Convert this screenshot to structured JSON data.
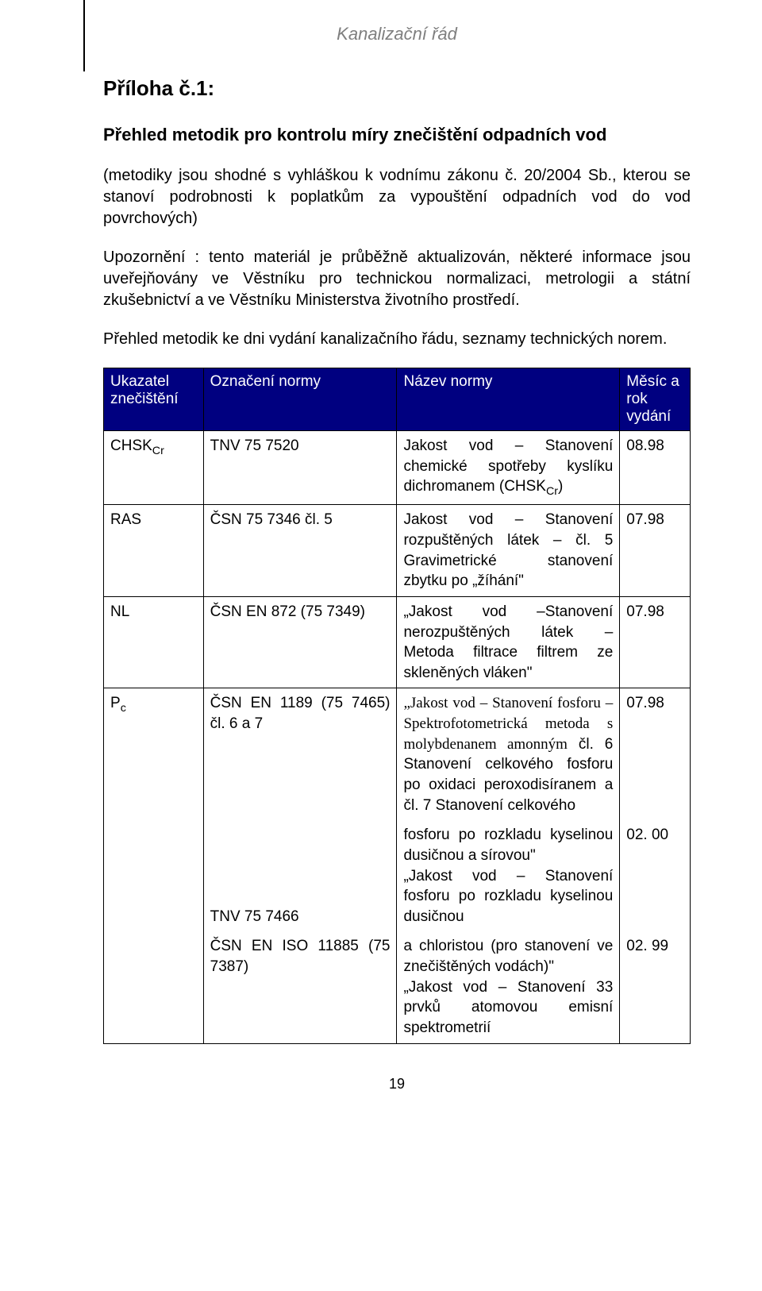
{
  "header": {
    "doc_title": "Kanalizační řád"
  },
  "title": "Příloha č.1:",
  "subtitle": "Přehled metodik pro kontrolu míry znečištění odpadních vod",
  "para1": "(metodiky jsou shodné s vyhláškou k vodnímu zákonu č. 20/2004 Sb., kterou se stanoví podrobnosti k poplatkům za vypouštění odpadních vod do vod povrchových)",
  "para2": "Upozornění : tento materiál je průběžně aktualizován, některé informace jsou uveřejňovány ve Věstníku pro technickou normalizaci, metrologii a státní zkušebnictví  a  ve Věstníku Ministerstva životního prostředí.",
  "para3": "Přehled metodik ke dni vydání kanalizačního řádu, seznamy technických norem.",
  "table": {
    "headers": {
      "c1": "Ukazatel znečištění",
      "c2": "Označení normy",
      "c3": "Název normy",
      "c4": "Měsíc a rok vydání"
    },
    "rows": {
      "r1": {
        "c1_pre": "CHSK",
        "c1_sub": "Cr",
        "c2": "TNV 75 7520",
        "c3_pre": "Jakost vod – Stanovení chemické spotřeby kyslíku dichromanem (CHSK",
        "c3_sub": "Cr",
        "c3_post": ")",
        "c4": "08.98"
      },
      "r2": {
        "c1": "RAS",
        "c2": "ČSN 75 7346 čl. 5",
        "c3": "Jakost vod – Stanovení rozpuštěných látek – čl. 5 Gravimetrické stanovení zbytku po „žíhání\"",
        "c4": "07.98"
      },
      "r3": {
        "c1": "NL",
        "c2": "ČSN EN 872 (75 7349)",
        "c3": "„Jakost vod –Stanovení nerozpuštěných látek – Metoda filtrace filtrem ze skleněných vláken\"",
        "c4": "07.98"
      },
      "r4a": {
        "c1_pre": "P",
        "c1_sub": "c",
        "c2": "ČSN EN 1189 (75 7465) čl. 6 a 7",
        "c3_serif": "„Jakost vod – Stanovení fosforu – Spektrofotometrická metoda s molybdenanem amonným",
        "c3_rest": " čl. 6 Stanovení celkového fosforu po oxidaci peroxodisíranem a čl. 7 Stanovení celkového",
        "c4": "07.98"
      },
      "r4b": {
        "c2": "TNV 75 7466",
        "c3": "fosforu po rozkladu kyselinou dusičnou a sírovou\"",
        "c3b": "„Jakost vod – Stanovení fosforu po rozkladu kyselinou dusičnou",
        "c4": "02. 00"
      },
      "r4c": {
        "c2": "ČSN EN ISO 11885 (75 7387)",
        "c3": "a chloristou (pro stanovení ve znečištěných vodách)\"",
        "c3b": "„Jakost vod – Stanovení 33 prvků atomovou emisní spektrometrií",
        "c4": "02. 99"
      }
    }
  },
  "page_number": "19",
  "colors": {
    "header_bg": "#000080",
    "header_fg": "#ffffff",
    "border": "#000000",
    "doc_title": "#7f7f7f"
  }
}
